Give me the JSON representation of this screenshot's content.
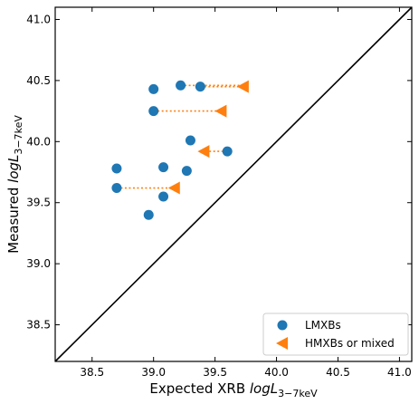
{
  "chart_data": {
    "type": "scatter",
    "xlabel": "Expected XRB logL_3-7keV",
    "ylabel": "Measured logL_3-7keV",
    "xlabel_parts": {
      "prefix": "Expected XRB ",
      "main": "logL",
      "sub": "3−7keV"
    },
    "ylabel_parts": {
      "prefix": "Measured ",
      "main": "logL",
      "sub": "3−7keV"
    },
    "xlim": [
      38.2,
      41.1
    ],
    "ylim": [
      38.2,
      41.1
    ],
    "xticks": [
      38.5,
      39.0,
      39.5,
      40.0,
      40.5,
      41.0
    ],
    "yticks": [
      38.5,
      39.0,
      39.5,
      40.0,
      40.5,
      41.0
    ],
    "xtick_labels": [
      "38.5",
      "39.0",
      "39.5",
      "40.0",
      "40.5",
      "41.0"
    ],
    "ytick_labels": [
      "38.5",
      "39.0",
      "39.5",
      "40.0",
      "40.5",
      "41.0"
    ],
    "grid": false,
    "one_to_one_line": true,
    "legend_position": "lower-right",
    "series": [
      {
        "name": "LMXBs",
        "marker": "circle",
        "color": "#1f77b4",
        "points": [
          {
            "x": 39.0,
            "y": 40.43
          },
          {
            "x": 39.22,
            "y": 40.46
          },
          {
            "x": 39.38,
            "y": 40.45
          },
          {
            "x": 39.0,
            "y": 40.25
          },
          {
            "x": 39.3,
            "y": 40.01
          },
          {
            "x": 39.6,
            "y": 39.92
          },
          {
            "x": 38.7,
            "y": 39.78
          },
          {
            "x": 39.08,
            "y": 39.79
          },
          {
            "x": 39.27,
            "y": 39.76
          },
          {
            "x": 38.7,
            "y": 39.62
          },
          {
            "x": 39.08,
            "y": 39.55
          },
          {
            "x": 38.96,
            "y": 39.4
          }
        ]
      },
      {
        "name": "HMXBs or mixed",
        "marker": "triangle-left",
        "color": "#ff7f0e",
        "points": [
          {
            "x": 39.73,
            "y": 40.45
          },
          {
            "x": 39.55,
            "y": 40.25
          },
          {
            "x": 39.41,
            "y": 39.92
          },
          {
            "x": 39.17,
            "y": 39.62
          }
        ]
      }
    ],
    "connectors": [
      {
        "from": [
          39.38,
          40.45
        ],
        "to": [
          39.73,
          40.45
        ]
      },
      {
        "from": [
          39.22,
          40.46
        ],
        "to": [
          39.73,
          40.46
        ]
      },
      {
        "from": [
          39.0,
          40.25
        ],
        "to": [
          39.55,
          40.25
        ]
      },
      {
        "from": [
          39.6,
          39.92
        ],
        "to": [
          39.41,
          39.92
        ]
      },
      {
        "from": [
          38.7,
          39.62
        ],
        "to": [
          39.17,
          39.62
        ]
      }
    ]
  }
}
